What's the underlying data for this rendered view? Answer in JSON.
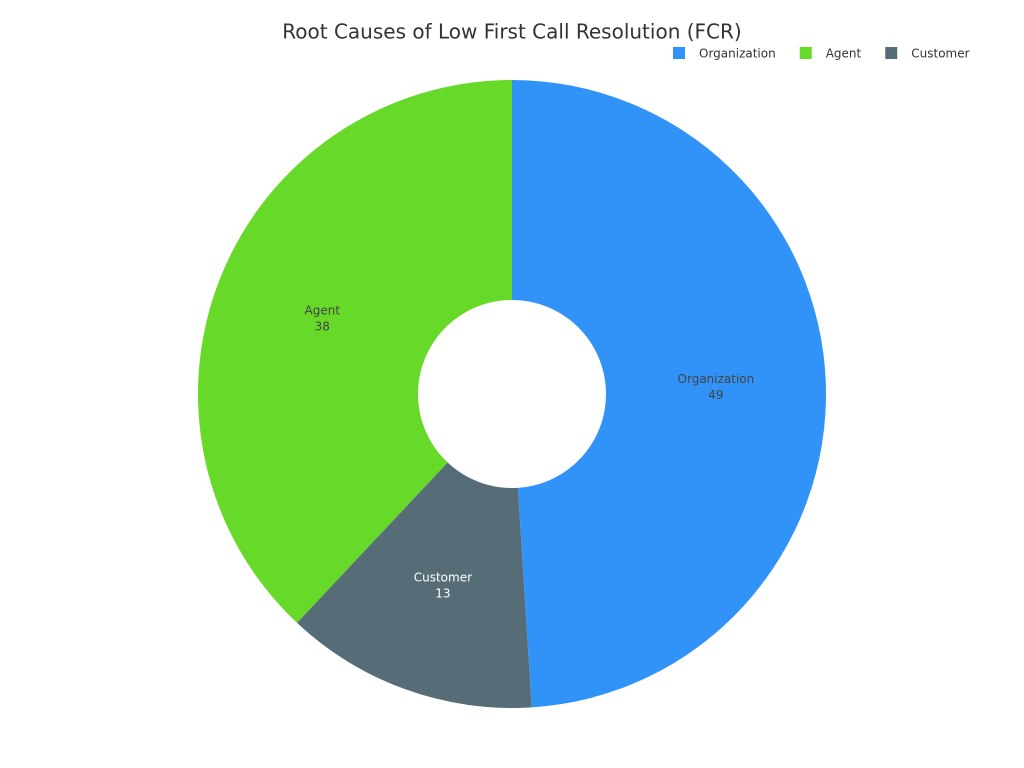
{
  "chart_data": {
    "type": "donut",
    "title": "Root Causes of Low First Call Resolution (FCR)",
    "categories": [
      "Organization",
      "Agent",
      "Customer"
    ],
    "values": [
      49,
      38,
      13
    ],
    "colors": [
      "#3193f7",
      "#67d929",
      "#566d78"
    ],
    "direction": "counterclockwise",
    "legend": "top-right"
  }
}
